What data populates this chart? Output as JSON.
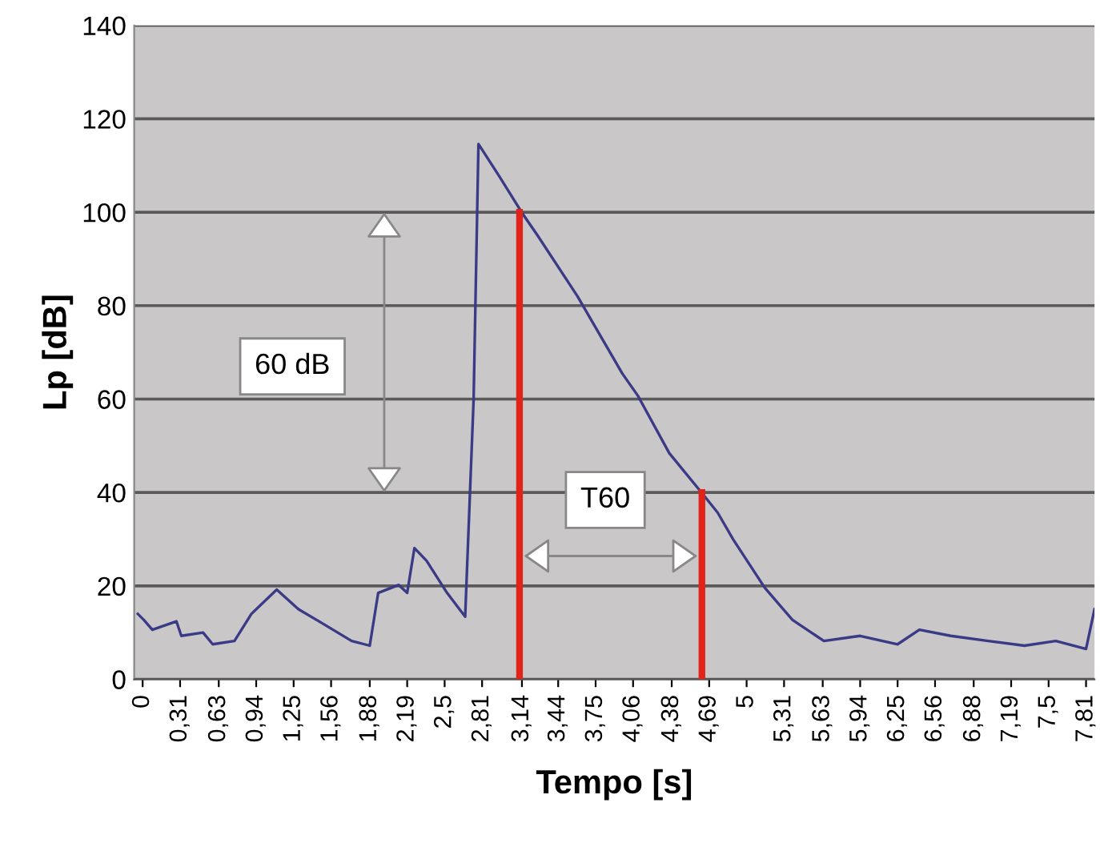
{
  "chart_data": {
    "type": "line",
    "xlabel": "Tempo [s]",
    "ylabel": "Lp [dB]",
    "annotations": [
      "60 dB",
      "T60"
    ],
    "xlim": [
      -0.07,
      7.88
    ],
    "ylim": [
      0,
      140
    ],
    "yticks": [
      0,
      20,
      40,
      60,
      80,
      100,
      120,
      140
    ],
    "xticks": [
      0,
      {
        "value": 0.31,
        "label": "0,31"
      },
      {
        "value": 0.63,
        "label": "0,63"
      },
      {
        "value": 0.94,
        "label": "0,94"
      },
      {
        "value": 1.25,
        "label": "1,25"
      },
      {
        "value": 1.56,
        "label": "1,56"
      },
      {
        "value": 1.88,
        "label": "1,88"
      },
      {
        "value": 2.19,
        "label": "2,19"
      },
      {
        "value": 2.5,
        "label": "2,5"
      },
      {
        "value": 2.81,
        "label": "2,81"
      },
      {
        "value": 3.14,
        "label": "3,14"
      },
      {
        "value": 3.44,
        "label": "3,44"
      },
      {
        "value": 3.75,
        "label": "3,75"
      },
      {
        "value": 4.06,
        "label": "4,06"
      },
      {
        "value": 4.38,
        "label": "4,38"
      },
      {
        "value": 4.69,
        "label": "4,69"
      },
      5,
      {
        "value": 5.31,
        "label": "5,31"
      },
      {
        "value": 5.63,
        "label": "5,63"
      },
      {
        "value": 5.94,
        "label": "5,94"
      },
      {
        "value": 6.25,
        "label": "6,25"
      },
      {
        "value": 6.56,
        "label": "6,56"
      },
      {
        "value": 6.88,
        "label": "6,88"
      },
      {
        "value": 7.19,
        "label": "7,19"
      },
      {
        "value": 7.5,
        "label": "7,5"
      },
      {
        "value": 7.81,
        "label": "7,81"
      }
    ],
    "grid": "y",
    "series": [
      {
        "color": "#3a3a86",
        "x": [
          -0.04,
          0.01,
          0.08,
          0.28,
          0.32,
          0.5,
          0.58,
          0.76,
          0.9,
          1.11,
          1.29,
          1.46,
          1.73,
          1.88,
          1.95,
          2.12,
          2.19,
          2.25,
          2.35,
          2.52,
          2.67,
          2.74,
          2.78,
          2.95,
          3.14,
          3.27,
          3.6,
          3.97,
          4.1,
          4.36,
          4.62,
          4.76,
          4.89,
          5.15,
          5.38,
          5.64,
          5.94,
          6.25,
          6.43,
          6.69,
          7.0,
          7.3,
          7.56,
          7.81,
          7.88
        ],
        "values": [
          14,
          12.7,
          10.6,
          12.4,
          9.3,
          10,
          7.5,
          8.2,
          14,
          19.2,
          15,
          12.4,
          8.2,
          7.2,
          18.5,
          20.2,
          18.5,
          28.1,
          25.4,
          18.5,
          13.4,
          60,
          114.6,
          107.8,
          99.9,
          95,
          82,
          65.5,
          60.7,
          48.4,
          40.2,
          35.7,
          29.9,
          19.6,
          12.7,
          8.2,
          9.3,
          7.5,
          10.6,
          9.3,
          8.2,
          7.2,
          8.2,
          6.5,
          15
        ]
      },
      {
        "color": "#e2231a",
        "x": [
          3.12,
          3.12
        ],
        "values": [
          0,
          100
        ]
      },
      {
        "color": "#e2231a",
        "x": [
          4.63,
          4.63
        ],
        "values": [
          0,
          40
        ]
      }
    ]
  }
}
